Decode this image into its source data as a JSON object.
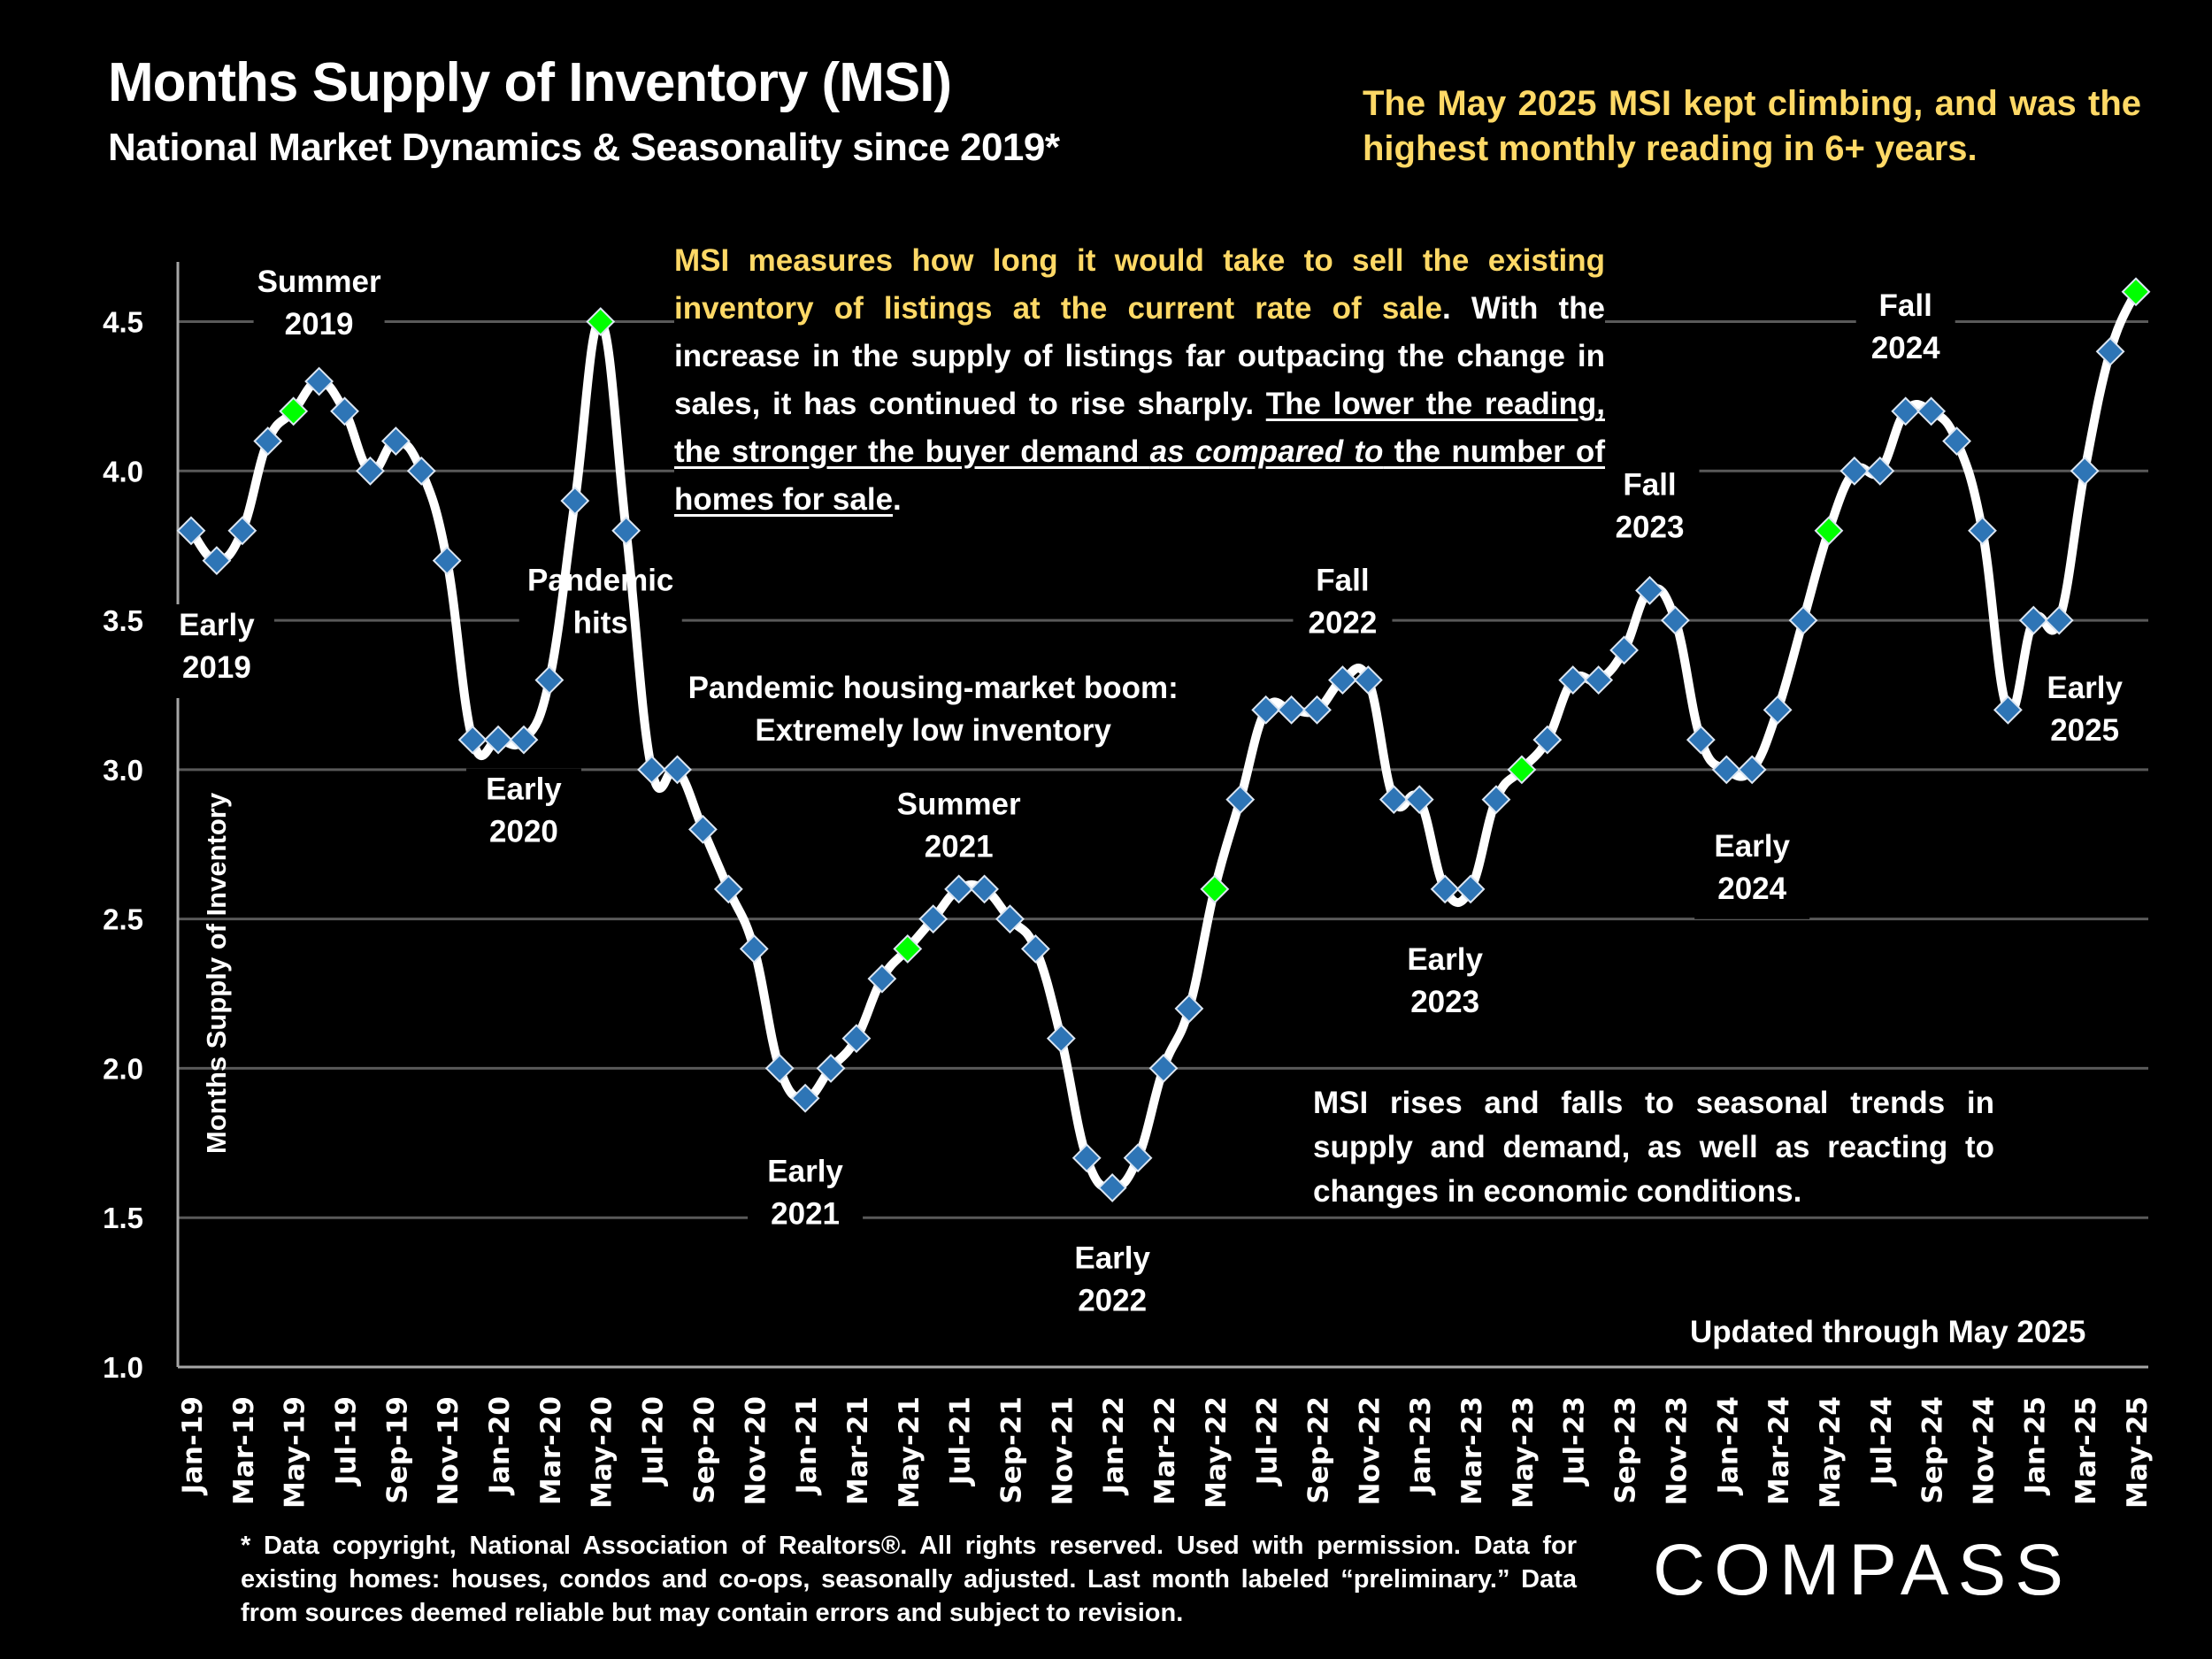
{
  "header": {
    "title": "Months Supply of Inventory (MSI)",
    "subtitle": "National Market Dynamics & Seasonality since 2019*",
    "headline": "The May 2025 MSI kept climbing, and was the highest monthly reading in 6+ years."
  },
  "explain": {
    "highlight": "MSI measures how long it would take to sell the existing inventory of listings at the current rate of sale",
    "body": ". With the increase in the supply of listings far outpacing the change in sales, it has continued to rise sharply. ",
    "underlined_a": "The lower the reading, the stronger the buyer demand ",
    "underlined_italic": "as compared to",
    "underlined_b": " the number of homes for sale",
    "end": "."
  },
  "seasonal_note": "MSI rises and falls to seasonal trends in supply and demand, as well as reacting to changes in economic conditions.",
  "updated_note": "Updated through May 2025",
  "footnote": "* Data copyright, National Association of Realtors®. All rights reserved. Used with permission. Data for existing homes: houses, condos and co-ops, seasonally adjusted. Last month labeled “preliminary.” Data from sources deemed reliable but may contain errors and subject to revision.",
  "logo": "COMPASS",
  "colors": {
    "background": "#000000",
    "line": "#ffffff",
    "marker": "#2e75b6",
    "marker_highlight": "#00ff00",
    "accent_text": "#ffd966",
    "grid": "#595959"
  },
  "chart_data": {
    "type": "line",
    "title": "Months Supply of Inventory (MSI)",
    "xlabel": "",
    "ylabel": "Months Supply of Inventory",
    "ylim": [
      1.0,
      4.7
    ],
    "yticks": [
      1.0,
      1.5,
      2.0,
      2.5,
      3.0,
      3.5,
      4.0,
      4.5
    ],
    "ytick_labels": [
      "1.0",
      "1.5",
      "2.0",
      "2.5",
      "3.0",
      "3.5",
      "4.0",
      "4.5"
    ],
    "grid": true,
    "legend": "none",
    "x": [
      "Jan-19",
      "Feb-19",
      "Mar-19",
      "Apr-19",
      "May-19",
      "Jun-19",
      "Jul-19",
      "Aug-19",
      "Sep-19",
      "Oct-19",
      "Nov-19",
      "Dec-19",
      "Jan-20",
      "Feb-20",
      "Mar-20",
      "Apr-20",
      "May-20",
      "Jun-20",
      "Jul-20",
      "Aug-20",
      "Sep-20",
      "Oct-20",
      "Nov-20",
      "Dec-20",
      "Jan-21",
      "Feb-21",
      "Mar-21",
      "Apr-21",
      "May-21",
      "Jun-21",
      "Jul-21",
      "Aug-21",
      "Sep-21",
      "Oct-21",
      "Nov-21",
      "Dec-21",
      "Jan-22",
      "Feb-22",
      "Mar-22",
      "Apr-22",
      "May-22",
      "Jun-22",
      "Jul-22",
      "Aug-22",
      "Sep-22",
      "Oct-22",
      "Nov-22",
      "Dec-22",
      "Jan-23",
      "Feb-23",
      "Mar-23",
      "Apr-23",
      "May-23",
      "Jun-23",
      "Jul-23",
      "Aug-23",
      "Sep-23",
      "Oct-23",
      "Nov-23",
      "Dec-23",
      "Jan-24",
      "Feb-24",
      "Mar-24",
      "Apr-24",
      "May-24",
      "Jun-24",
      "Jul-24",
      "Aug-24",
      "Sep-24",
      "Oct-24",
      "Nov-24",
      "Dec-24",
      "Jan-25",
      "Feb-25",
      "Mar-25",
      "Apr-25",
      "May-25"
    ],
    "xtick_labels": [
      "Jan-19",
      "Mar-19",
      "May-19",
      "Jul-19",
      "Sep-19",
      "Nov-19",
      "Jan-20",
      "Mar-20",
      "May-20",
      "Jul-20",
      "Sep-20",
      "Nov-20",
      "Jan-21",
      "Mar-21",
      "May-21",
      "Jul-21",
      "Sep-21",
      "Nov-21",
      "Jan-22",
      "Mar-22",
      "May-22",
      "Jul-22",
      "Sep-22",
      "Nov-22",
      "Jan-23",
      "Mar-23",
      "May-23",
      "Jul-23",
      "Sep-23",
      "Nov-23",
      "Jan-24",
      "Mar-24",
      "May-24",
      "Jul-24",
      "Sep-24",
      "Nov-24",
      "Jan-25",
      "Mar-25",
      "May-25"
    ],
    "series": [
      {
        "name": "MSI",
        "values": [
          3.8,
          3.7,
          3.8,
          4.1,
          4.2,
          4.3,
          4.2,
          4.0,
          4.1,
          4.0,
          3.7,
          3.1,
          3.1,
          3.1,
          3.3,
          3.9,
          4.5,
          3.8,
          3.0,
          3.0,
          2.8,
          2.6,
          2.4,
          2.0,
          1.9,
          2.0,
          2.1,
          2.3,
          2.4,
          2.5,
          2.6,
          2.6,
          2.5,
          2.4,
          2.1,
          1.7,
          1.6,
          1.7,
          2.0,
          2.2,
          2.6,
          2.9,
          3.2,
          3.2,
          3.2,
          3.3,
          3.3,
          2.9,
          2.9,
          2.6,
          2.6,
          2.9,
          3.0,
          3.1,
          3.3,
          3.3,
          3.4,
          3.6,
          3.5,
          3.1,
          3.0,
          3.0,
          3.2,
          3.5,
          3.8,
          4.0,
          4.0,
          4.2,
          4.2,
          4.1,
          3.8,
          3.2,
          3.5,
          3.5,
          4.0,
          4.4,
          4.6
        ]
      }
    ],
    "highlighted_points": [
      "May-19",
      "May-20",
      "May-21",
      "May-22",
      "May-23",
      "May-24",
      "May-25"
    ],
    "annotations": [
      {
        "text": [
          "Early",
          "2019"
        ],
        "month": "Feb-19",
        "value": 3.45
      },
      {
        "text": [
          "Summer",
          "2019"
        ],
        "month": "Jun-19",
        "value": 4.6
      },
      {
        "text": [
          "Early",
          "2020"
        ],
        "month": "Feb-20",
        "value": 2.9
      },
      {
        "text": [
          "Pandemic",
          "hits"
        ],
        "month": "May-20",
        "value": 3.6
      },
      {
        "text": [
          "Pandemic housing-market boom:",
          "Extremely low inventory"
        ],
        "month": "Jun-21",
        "value": 3.24
      },
      {
        "text": [
          "Summer",
          "2021"
        ],
        "month": "Jul-21",
        "value": 2.85
      },
      {
        "text": [
          "Early",
          "2021"
        ],
        "month": "Jan-21",
        "value": 1.62
      },
      {
        "text": [
          "Early",
          "2022"
        ],
        "month": "Jan-22",
        "value": 1.33
      },
      {
        "text": [
          "Fall",
          "2022"
        ],
        "month": "Oct-22",
        "value": 3.6
      },
      {
        "text": [
          "Early",
          "2023"
        ],
        "month": "Feb-23",
        "value": 2.33
      },
      {
        "text": [
          "Fall",
          "2023"
        ],
        "month": "Oct-23",
        "value": 3.92
      },
      {
        "text": [
          "Early",
          "2024"
        ],
        "month": "Feb-24",
        "value": 2.71
      },
      {
        "text": [
          "Fall",
          "2024"
        ],
        "month": "Aug-24",
        "value": 4.52
      },
      {
        "text": [
          "Early",
          "2025"
        ],
        "month": "Mar-25",
        "value": 3.24
      }
    ]
  }
}
